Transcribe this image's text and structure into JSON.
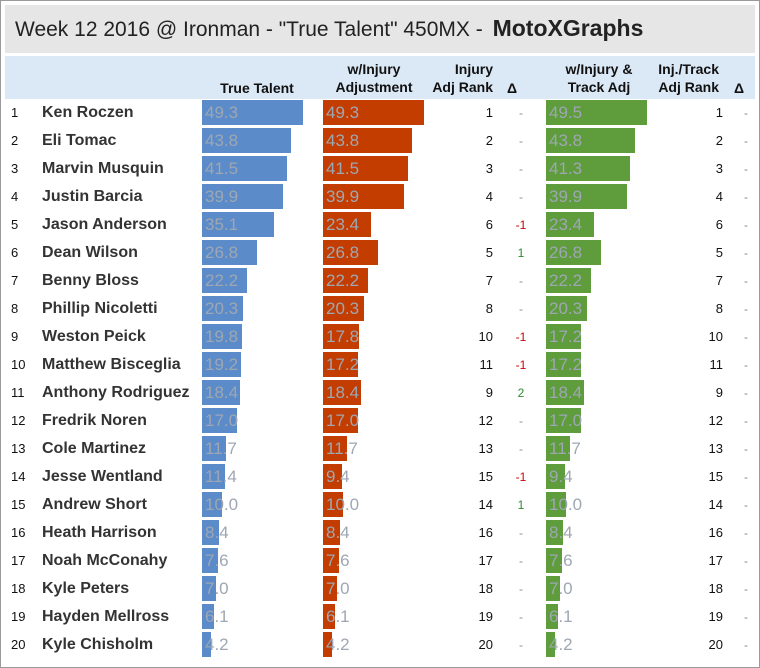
{
  "title": "Week 12 2016 @ Ironman - \"True Talent\" 450MX - ",
  "brand": "MotoXGraphs",
  "headers": {
    "true_talent": "True Talent",
    "injury_adj_1": "w/Injury",
    "injury_adj_2": "Adjustment",
    "injury_rank_1": "Injury",
    "injury_rank_2": "Adj Rank",
    "delta_1": "Δ",
    "track_adj_1": "w/Injury &",
    "track_adj_2": "Track Adj",
    "track_rank_1": "Inj./Track",
    "track_rank_2": "Adj Rank",
    "delta_2": "Δ"
  },
  "colors": {
    "true_talent": "#5b8bc9",
    "injury_adj": "#c33d00",
    "track_adj": "#5e9c3c",
    "header_bg": "#dbe8f6",
    "title_bg": "#e6e6e6"
  },
  "chart_data": {
    "type": "table",
    "columns": [
      "True Talent",
      "w/Injury Adjustment",
      "Injury Adj Rank",
      "Δ",
      "w/Injury & Track Adj",
      "Inj./Track Adj Rank",
      "Δ"
    ],
    "rows": [
      {
        "rank": "1",
        "name": "Ken Roczen",
        "tt": 49.3,
        "inj": 49.3,
        "inj_rank": "1",
        "d1": "-",
        "track": 49.5,
        "track_rank": "1",
        "d2": "-"
      },
      {
        "rank": "2",
        "name": "Eli Tomac",
        "tt": 43.8,
        "inj": 43.8,
        "inj_rank": "2",
        "d1": "-",
        "track": 43.8,
        "track_rank": "2",
        "d2": "-"
      },
      {
        "rank": "3",
        "name": "Marvin Musquin",
        "tt": 41.5,
        "inj": 41.5,
        "inj_rank": "3",
        "d1": "-",
        "track": 41.3,
        "track_rank": "3",
        "d2": "-"
      },
      {
        "rank": "4",
        "name": "Justin Barcia",
        "tt": 39.9,
        "inj": 39.9,
        "inj_rank": "4",
        "d1": "-",
        "track": 39.9,
        "track_rank": "4",
        "d2": "-"
      },
      {
        "rank": "5",
        "name": "Jason Anderson",
        "tt": 35.1,
        "inj": 23.4,
        "inj_rank": "6",
        "d1": "-1",
        "track": 23.4,
        "track_rank": "6",
        "d2": "-"
      },
      {
        "rank": "6",
        "name": "Dean Wilson",
        "tt": 26.8,
        "inj": 26.8,
        "inj_rank": "5",
        "d1": "1",
        "track": 26.8,
        "track_rank": "5",
        "d2": "-"
      },
      {
        "rank": "7",
        "name": "Benny Bloss",
        "tt": 22.2,
        "inj": 22.2,
        "inj_rank": "7",
        "d1": "-",
        "track": 22.2,
        "track_rank": "7",
        "d2": "-"
      },
      {
        "rank": "8",
        "name": "Phillip Nicoletti",
        "tt": 20.3,
        "inj": 20.3,
        "inj_rank": "8",
        "d1": "-",
        "track": 20.3,
        "track_rank": "8",
        "d2": "-"
      },
      {
        "rank": "9",
        "name": "Weston Peick",
        "tt": 19.8,
        "inj": 17.8,
        "inj_rank": "10",
        "d1": "-1",
        "track": 17.2,
        "track_rank": "10",
        "d2": "-"
      },
      {
        "rank": "10",
        "name": "Matthew Bisceglia",
        "tt": 19.2,
        "inj": 17.2,
        "inj_rank": "11",
        "d1": "-1",
        "track": 17.2,
        "track_rank": "11",
        "d2": "-"
      },
      {
        "rank": "11",
        "name": "Anthony Rodriguez",
        "tt": 18.4,
        "inj": 18.4,
        "inj_rank": "9",
        "d1": "2",
        "track": 18.4,
        "track_rank": "9",
        "d2": "-"
      },
      {
        "rank": "12",
        "name": "Fredrik Noren",
        "tt": 17.0,
        "inj": 17.0,
        "inj_rank": "12",
        "d1": "-",
        "track": 17.0,
        "track_rank": "12",
        "d2": "-"
      },
      {
        "rank": "13",
        "name": "Cole Martinez",
        "tt": 11.7,
        "inj": 11.7,
        "inj_rank": "13",
        "d1": "-",
        "track": 11.7,
        "track_rank": "13",
        "d2": "-"
      },
      {
        "rank": "14",
        "name": "Jesse Wentland",
        "tt": 11.4,
        "inj": 9.4,
        "inj_rank": "15",
        "d1": "-1",
        "track": 9.4,
        "track_rank": "15",
        "d2": "-"
      },
      {
        "rank": "15",
        "name": "Andrew Short",
        "tt": 10.0,
        "inj": 10.0,
        "inj_rank": "14",
        "d1": "1",
        "track": 10.0,
        "track_rank": "14",
        "d2": "-"
      },
      {
        "rank": "16",
        "name": "Heath Harrison",
        "tt": 8.4,
        "inj": 8.4,
        "inj_rank": "16",
        "d1": "-",
        "track": 8.4,
        "track_rank": "16",
        "d2": "-"
      },
      {
        "rank": "17",
        "name": "Noah McConahy",
        "tt": 7.6,
        "inj": 7.6,
        "inj_rank": "17",
        "d1": "-",
        "track": 7.6,
        "track_rank": "17",
        "d2": "-"
      },
      {
        "rank": "18",
        "name": "Kyle Peters",
        "tt": 7.0,
        "inj": 7.0,
        "inj_rank": "18",
        "d1": "-",
        "track": 7.0,
        "track_rank": "18",
        "d2": "-"
      },
      {
        "rank": "19",
        "name": "Hayden Mellross",
        "tt": 6.1,
        "inj": 6.1,
        "inj_rank": "19",
        "d1": "-",
        "track": 6.1,
        "track_rank": "19",
        "d2": "-"
      },
      {
        "rank": "20",
        "name": "Kyle Chisholm",
        "tt": 4.2,
        "inj": 4.2,
        "inj_rank": "20",
        "d1": "-",
        "track": 4.2,
        "track_rank": "20",
        "d2": "-"
      }
    ]
  }
}
